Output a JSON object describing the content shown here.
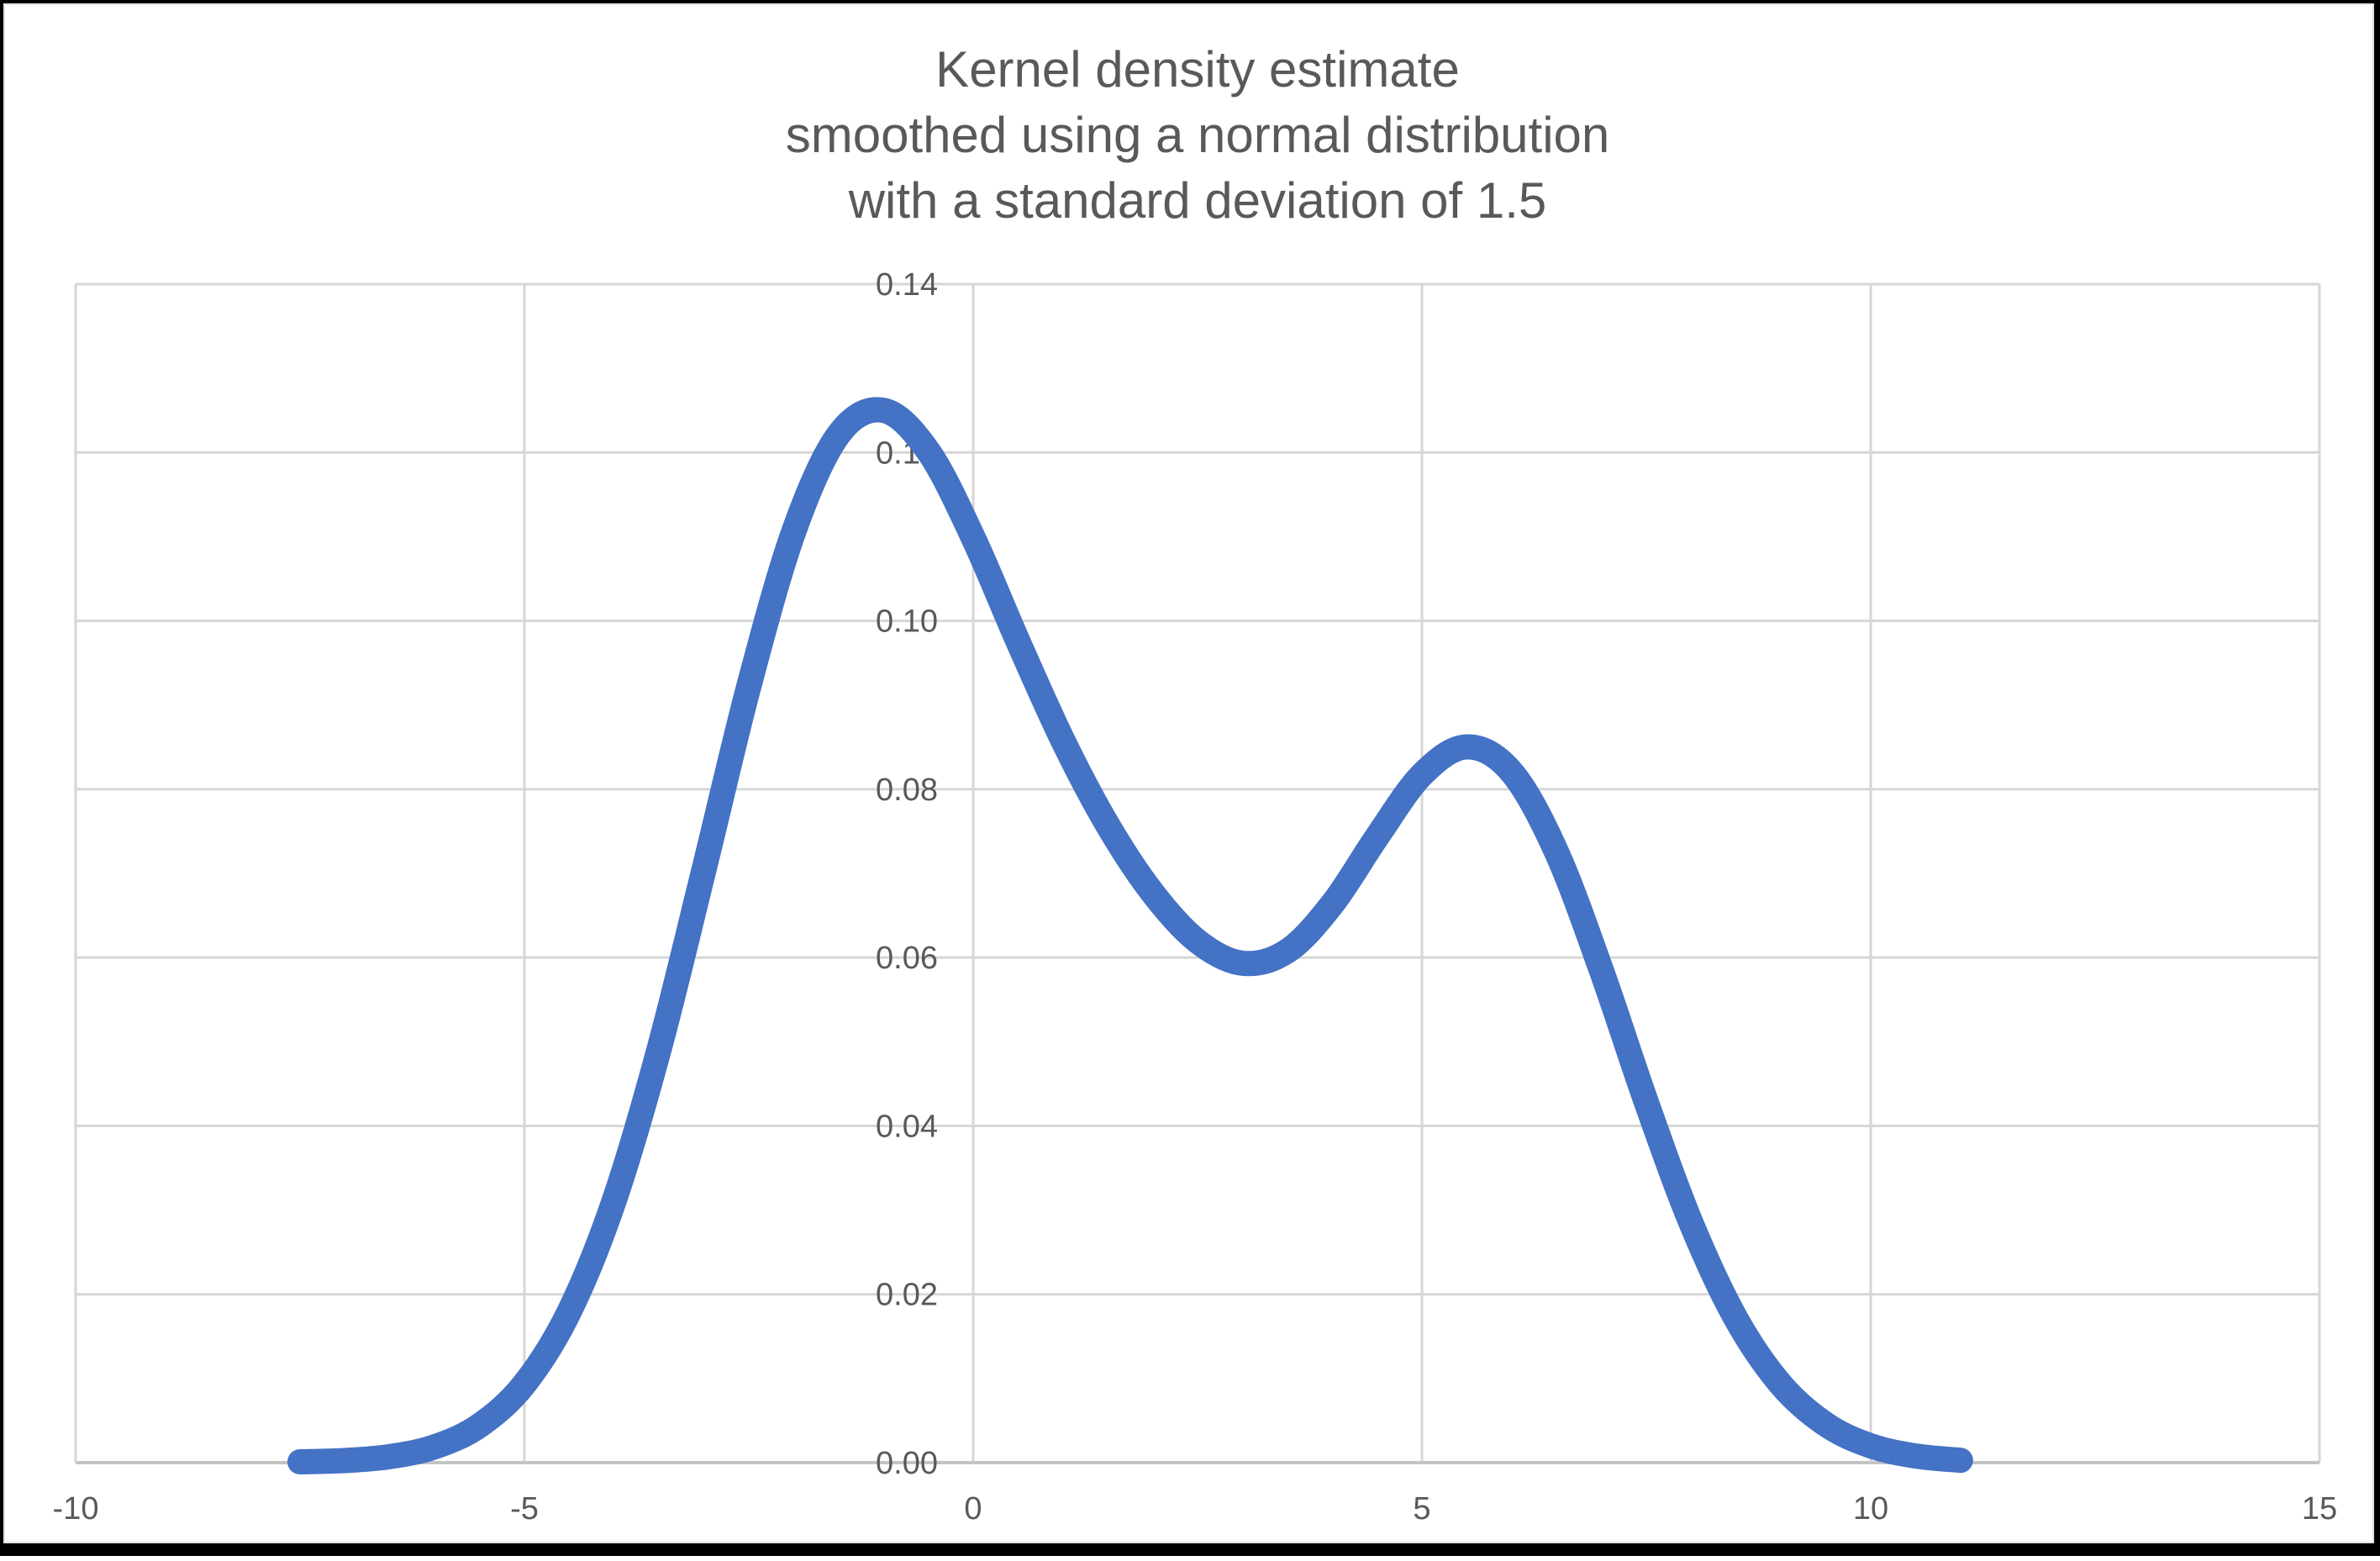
{
  "title": {
    "lines": [
      "Kernel density estimate",
      "smoothed using a normal distribution",
      "with a standard deviation of 1.5"
    ],
    "color": "#595959"
  },
  "style": {
    "background": "#FFFFFF",
    "frame_color": "#000000",
    "gridline_color": "#D6D6D6",
    "axis_line_color": "#C4C4C4",
    "tick_label_color": "#595959",
    "line_color": "#4472C4"
  },
  "chart_data": {
    "type": "line",
    "title": "Kernel density estimate smoothed using a normal distribution with a standard deviation of 1.5",
    "xlabel": "",
    "ylabel": "",
    "xlim": [
      -10,
      15
    ],
    "ylim": [
      0,
      0.14
    ],
    "x_ticks": [
      -10,
      -5,
      0,
      5,
      10,
      15
    ],
    "x_tick_labels": [
      "-10",
      "-5",
      "0",
      "5",
      "10",
      "15"
    ],
    "y_ticks": [
      0,
      0.02,
      0.04,
      0.06,
      0.08,
      0.1,
      0.12,
      0.14
    ],
    "y_tick_labels": [
      "0.00",
      "0.02",
      "0.04",
      "0.06",
      "0.08",
      "0.10",
      "0.12",
      "0.14"
    ],
    "grid": true,
    "legend": false,
    "series": [
      {
        "name": "Kernel density estimate",
        "color": "#4472C4",
        "stroke_width": 30,
        "x": [
          -7.5,
          -7,
          -6.5,
          -6,
          -5.5,
          -5,
          -4.5,
          -4,
          -3.5,
          -3,
          -2.5,
          -2,
          -1.5,
          -1,
          -0.5,
          0,
          0.5,
          1,
          1.5,
          2,
          2.5,
          3,
          3.5,
          4,
          4.5,
          5,
          5.5,
          6,
          6.5,
          7,
          7.5,
          8,
          8.5,
          9,
          9.5,
          10,
          10.5,
          11
        ],
        "y": [
          0.0001,
          0.00025,
          0.00072,
          0.00188,
          0.00441,
          0.00935,
          0.01794,
          0.03114,
          0.04909,
          0.07043,
          0.0922,
          0.11058,
          0.12212,
          0.12501,
          0.12014,
          0.10988,
          0.09754,
          0.08578,
          0.07571,
          0.06767,
          0.06193,
          0.05933,
          0.06077,
          0.06634,
          0.07435,
          0.08172,
          0.08503,
          0.08202,
          0.07252,
          0.05846,
          0.04281,
          0.02843,
          0.01708,
          0.00927,
          0.00454,
          0.002,
          0.00079,
          0.00028
        ]
      }
    ]
  }
}
